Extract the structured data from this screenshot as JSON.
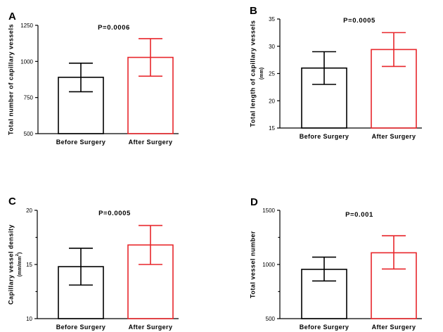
{
  "chart_data": [
    {
      "type": "bar",
      "panel": "A",
      "title": "",
      "p_value": "P=0.0006",
      "ylabel": "Total number of capillary vessels",
      "yunit": "",
      "xlabel": "",
      "categories": [
        "Before Surgery",
        "After Surgery"
      ],
      "values": [
        890,
        1028
      ],
      "errors": [
        [
          790,
          988
        ],
        [
          898,
          1158
        ]
      ],
      "colors": [
        "#000000",
        "#e8262b"
      ],
      "ylim": [
        500,
        1250
      ],
      "yticks": [
        500,
        750,
        1000,
        1250
      ]
    },
    {
      "type": "bar",
      "panel": "B",
      "title": "",
      "p_value": "P=0.0005",
      "ylabel": "Total length of capillary vessels",
      "yunit": "(mm)",
      "xlabel": "",
      "categories": [
        "Before Surgery",
        "After Surgery"
      ],
      "values": [
        26.0,
        29.4
      ],
      "errors": [
        [
          23.0,
          29.0
        ],
        [
          26.3,
          32.5
        ]
      ],
      "colors": [
        "#000000",
        "#e8262b"
      ],
      "ylim": [
        15,
        35
      ],
      "yticks": [
        15,
        20,
        25,
        30,
        35
      ]
    },
    {
      "type": "bar",
      "panel": "C",
      "title": "",
      "p_value": "P=0.0005",
      "ylabel": "Capillary vessel density",
      "yunit": "(mm/mm",
      "yunit_sup": "2",
      "yunit_close": ")",
      "xlabel": "",
      "categories": [
        "Before Surgery",
        "After Surgery"
      ],
      "values": [
        14.8,
        16.8
      ],
      "errors": [
        [
          13.1,
          16.5
        ],
        [
          15.0,
          18.6
        ]
      ],
      "colors": [
        "#000000",
        "#e8262b"
      ],
      "ylim": [
        10,
        20
      ],
      "yticks": [
        10,
        15,
        20
      ]
    },
    {
      "type": "bar",
      "panel": "D",
      "title": "",
      "p_value": "P=0.001",
      "ylabel": "Total vessel number",
      "yunit": "",
      "xlabel": "",
      "categories": [
        "Before Surgery",
        "After Surgery"
      ],
      "values": [
        955,
        1108
      ],
      "errors": [
        [
          848,
          1068
        ],
        [
          958,
          1265
        ]
      ],
      "colors": [
        "#000000",
        "#e8262b"
      ],
      "ylim": [
        500,
        1500
      ],
      "yticks": [
        500,
        1000,
        1500
      ]
    }
  ]
}
